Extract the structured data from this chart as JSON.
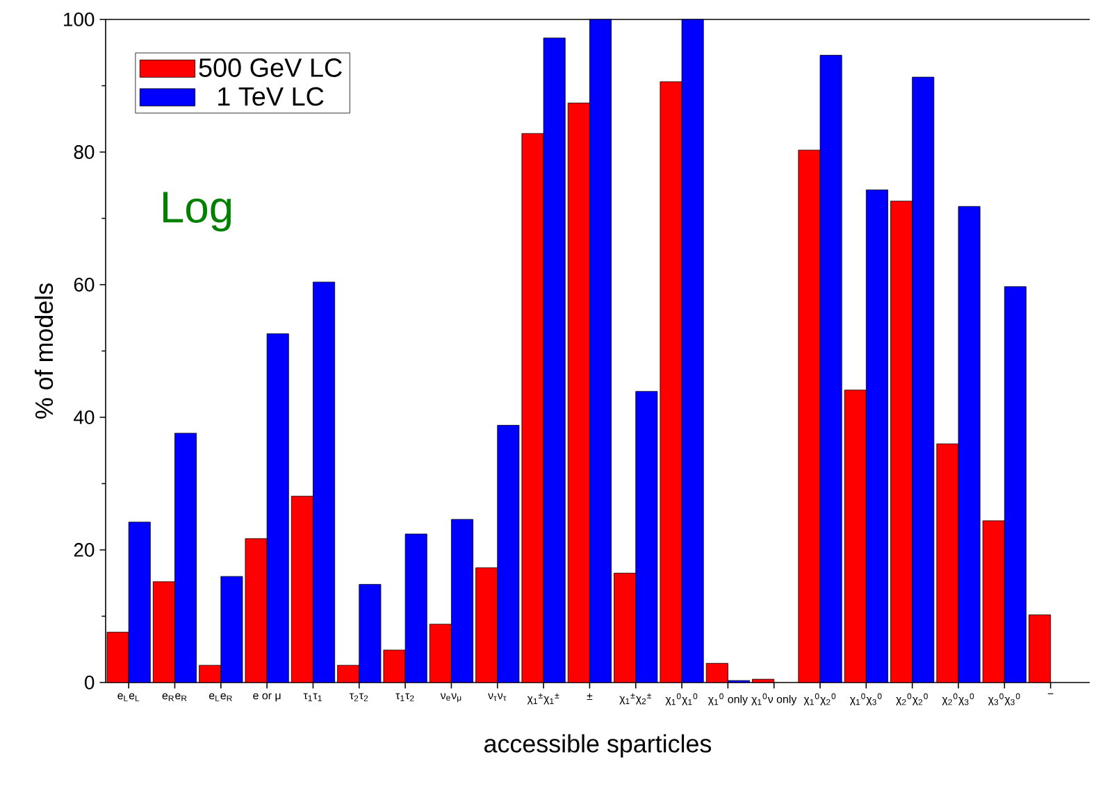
{
  "chart_data": {
    "type": "bar",
    "xlabel": "accessible sparticles",
    "ylabel": "% of models",
    "annotations": [
      "Log"
    ],
    "categories": [
      "e$_{L}$e$_{L}$",
      "e$_{R}$e$_{R}$",
      "e$_{L}$e$_{R}$",
      "e or μ",
      "τ$_{1}$τ$_{1}$",
      "τ$_{2}$τ$_{2}$",
      "τ$_{1}$τ$_{2}$",
      "ν$_{e}$ν$_{μ}$",
      "ν$_{τ}$ν$_{τ}$",
      "χ$_{1}$$^{±}$χ$_{1}$$^{±}$",
      "±",
      "χ$_{1}$$^{±}$χ$_{2}$$^{±}$",
      "χ$_{1}$$^{0}$χ$_{1}$$^{0}$",
      "χ$_{1}$$^{0}$ only",
      "χ$_{1}$$^{0}$ν only",
      "χ$_{1}$$^{0}$χ$_{2}$$^{0}$",
      "χ$_{1}$$^{0}$χ$_{3}$$^{0}$",
      "χ$_{2}$$^{0}$χ$_{2}$$^{0}$",
      "χ$_{2}$$^{0}$χ$_{3}$$^{0}$",
      "χ$_{3}$$^{0}$χ$_{3}$$^{0}$",
      "−"
    ],
    "series": [
      {
        "name": "500 GeV LC",
        "color": "#ff0000",
        "values": [
          7.6,
          15.2,
          2.6,
          21.7,
          28.1,
          2.6,
          4.9,
          8.8,
          17.3,
          82.8,
          87.4,
          16.5,
          90.6,
          2.9,
          0.5,
          80.3,
          44.1,
          72.6,
          36.0,
          24.4,
          10.2
        ]
      },
      {
        "name": "1 TeV LC",
        "color": "#0000ff",
        "values": [
          24.2,
          37.6,
          16.0,
          52.6,
          60.4,
          14.8,
          22.4,
          24.6,
          38.8,
          97.2,
          100,
          43.9,
          100,
          0.3,
          null,
          94.6,
          74.3,
          91.3,
          71.8,
          59.7,
          null
        ]
      }
    ],
    "ylim": [
      0,
      100
    ],
    "yticks": [
      0,
      20,
      40,
      60,
      80,
      100
    ],
    "legend": "top left"
  }
}
